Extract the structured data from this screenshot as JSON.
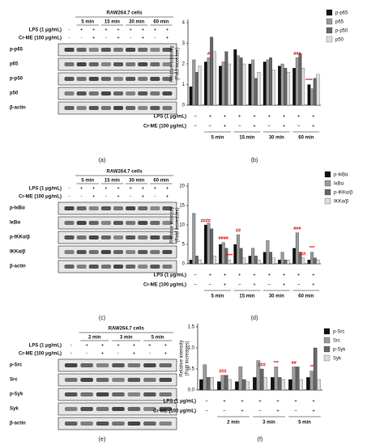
{
  "blots": [
    {
      "panel": "(a)",
      "title": "RAW264.7 cells",
      "times": [
        "5 min",
        "15 min",
        "30 min",
        "60 min"
      ],
      "lps_label": "LPS (1 μg/mL)",
      "lps": [
        "-",
        "+",
        "+",
        "+",
        "+",
        "+",
        "+",
        "+",
        "+"
      ],
      "crme_label": "Cr-ME (100 μg/mL)",
      "crme": [
        "-",
        "-",
        "+",
        "-",
        "+",
        "-",
        "+",
        "-",
        "+"
      ],
      "bands": [
        "p-p65",
        "p65",
        "p-p50",
        "p50",
        "β-actin"
      ]
    },
    {
      "panel": "(c)",
      "title": "RAW264.7 cells",
      "times": [
        "5 min",
        "15 min",
        "30 min",
        "60 min"
      ],
      "lps_label": "LPS (1 μg/mL)",
      "lps": [
        "-",
        "+",
        "+",
        "+",
        "+",
        "+",
        "+",
        "+",
        "+"
      ],
      "crme_label": "Cr-ME (100 μg/mL)",
      "crme": [
        "-",
        "-",
        "+",
        "-",
        "+",
        "-",
        "+",
        "-",
        "+"
      ],
      "bands": [
        "p-IκBα",
        "IκBα",
        "p-IKKα/β",
        "IKKα/β",
        "β-actin"
      ]
    },
    {
      "panel": "(e)",
      "title": "RAW264.7 cells",
      "times": [
        "2 min",
        "3 min",
        "5 min"
      ],
      "lps_label": "LPS (1 μg/mL)",
      "lps": [
        "-",
        "+",
        "+",
        "+",
        "+",
        "+",
        "+"
      ],
      "crme_label": "Cr-ME (100 μg/mL)",
      "crme": [
        "-",
        "-",
        "+",
        "-",
        "+",
        "-",
        "+"
      ],
      "bands": [
        "p-Src",
        "Src",
        "p-Syk",
        "Syk",
        "β-actin"
      ]
    }
  ],
  "chart_data": [
    {
      "type": "bar",
      "panel": "(b)",
      "y_label": [
        "Relative intensity",
        "(Fold increase)"
      ],
      "ylim": [
        0,
        4
      ],
      "yticks": [
        0,
        1,
        2,
        3,
        4
      ],
      "lps_label": "LPS (1 μg/mL)",
      "lps": [
        "–",
        "+",
        "+",
        "+",
        "+",
        "+",
        "+",
        "+",
        "+"
      ],
      "crme_label": "Cr-ME (100 μg/mL)",
      "crme": [
        "–",
        "–",
        "+",
        "–",
        "+",
        "–",
        "+",
        "–",
        "+"
      ],
      "time_groups": [
        "5 min",
        "15 min",
        "30 min",
        "60 min"
      ],
      "series": [
        {
          "name": "p-p65",
          "color": "#111111",
          "values": [
            0.9,
            2.1,
            1.9,
            2.7,
            2.0,
            2.1,
            1.9,
            1.8,
            1.0
          ]
        },
        {
          "name": "p65",
          "color": "#9a9a9a",
          "values": [
            2.2,
            2.3,
            2.1,
            2.4,
            2.2,
            2.2,
            2.0,
            2.3,
            0.8
          ]
        },
        {
          "name": "p-p50",
          "color": "#666666",
          "values": [
            1.6,
            3.3,
            2.6,
            2.3,
            1.3,
            2.3,
            1.8,
            2.5,
            1.3
          ]
        },
        {
          "name": "p50",
          "color": "#dddddd",
          "values": [
            1.9,
            2.6,
            2.0,
            2.0,
            1.6,
            1.7,
            1.6,
            1.8,
            1.5
          ]
        }
      ],
      "annotations": [
        {
          "text": "#",
          "category": 1,
          "series": 1
        },
        {
          "text": "###",
          "category": 7,
          "series": 1
        },
        {
          "text": "****",
          "category": 8,
          "series": 0
        }
      ]
    },
    {
      "type": "bar",
      "panel": "(d)",
      "y_label": [
        "Relative intensity",
        "(Fold increases)"
      ],
      "ylim": [
        0,
        20
      ],
      "yticks": [
        0,
        5,
        10,
        15,
        20
      ],
      "lps_label": "LPS (1 μg/mL)",
      "lps": [
        "–",
        "+",
        "+",
        "+",
        "+",
        "+",
        "+",
        "+",
        "+"
      ],
      "crme_label": "Cr-ME (100 μg/mL)",
      "crme": [
        "–",
        "–",
        "+",
        "–",
        "+",
        "–",
        "+",
        "–",
        "+"
      ],
      "time_groups": [
        "5 min",
        "15 min",
        "30 min",
        "60 min"
      ],
      "series": [
        {
          "name": "p-IκBα",
          "color": "#111111",
          "values": [
            1,
            10,
            5,
            5,
            2,
            3,
            1,
            4,
            1
          ]
        },
        {
          "name": "IκBα",
          "color": "#9a9a9a",
          "values": [
            13,
            10.5,
            5.5,
            7.5,
            4,
            6,
            3,
            8,
            3
          ]
        },
        {
          "name": "p-IKKα/β",
          "color": "#666666",
          "values": [
            2,
            9,
            4,
            4,
            2,
            3,
            1,
            3,
            1.5
          ]
        },
        {
          "name": "IKKα/β",
          "color": "#dddddd",
          "values": [
            1,
            2,
            1,
            1.5,
            1,
            1.5,
            1,
            1.5,
            1
          ]
        }
      ],
      "annotations": [
        {
          "text": "####",
          "category": 1,
          "series": 0
        },
        {
          "text": "####",
          "category": 2,
          "series": 1
        },
        {
          "text": "****",
          "category": 2,
          "series": 3
        },
        {
          "text": "##",
          "category": 3,
          "series": 1
        },
        {
          "text": "###",
          "category": 7,
          "series": 1
        },
        {
          "text": "##",
          "category": 7,
          "series": 3
        },
        {
          "text": "***",
          "category": 8,
          "series": 1
        }
      ]
    },
    {
      "type": "bar",
      "panel": "(f)",
      "y_label": [
        "Relative intensity",
        "(Fold increases)"
      ],
      "ylim": [
        0,
        1.5
      ],
      "yticks": [
        {
          "value": 0,
          "label": "0.0"
        },
        {
          "value": 0.5,
          "label": "0.5"
        },
        {
          "value": 1,
          "label": "1.0"
        },
        {
          "value": 1.5,
          "label": "1.5"
        }
      ],
      "lps_label": "LPS (1 μg/mL)",
      "lps": [
        "–",
        "+",
        "+",
        "+",
        "+",
        "+",
        "+"
      ],
      "crme_label": "Cr-ME (100 μg/mL)",
      "crme": [
        "–",
        "–",
        "+",
        "–",
        "+",
        "–",
        "+"
      ],
      "time_groups": [
        "2 min",
        "3 min",
        "5 min"
      ],
      "series": [
        {
          "name": "p-Src",
          "color": "#111111",
          "values": [
            0.25,
            0.2,
            0.2,
            0.3,
            0.3,
            0.25,
            0.3
          ]
        },
        {
          "name": "Src",
          "color": "#9a9a9a",
          "values": [
            0.6,
            0.35,
            0.55,
            0.7,
            0.55,
            0.55,
            0.45
          ]
        },
        {
          "name": "p-Syk",
          "color": "#666666",
          "values": [
            0.3,
            0.35,
            0.25,
            0.5,
            0.3,
            0.55,
            1.0
          ]
        },
        {
          "name": "Syk",
          "color": "#dddddd",
          "values": [
            0.3,
            0.25,
            0.2,
            0.3,
            0.25,
            0.25,
            0.25
          ]
        }
      ],
      "annotations": [
        {
          "text": "###",
          "category": 1,
          "series": 1
        },
        {
          "text": "###",
          "category": 3,
          "series": 2
        },
        {
          "text": "***",
          "category": 4,
          "series": 1
        },
        {
          "text": "##",
          "category": 5,
          "series": 1
        },
        {
          "text": "**",
          "category": 6,
          "series": 1
        }
      ]
    }
  ]
}
